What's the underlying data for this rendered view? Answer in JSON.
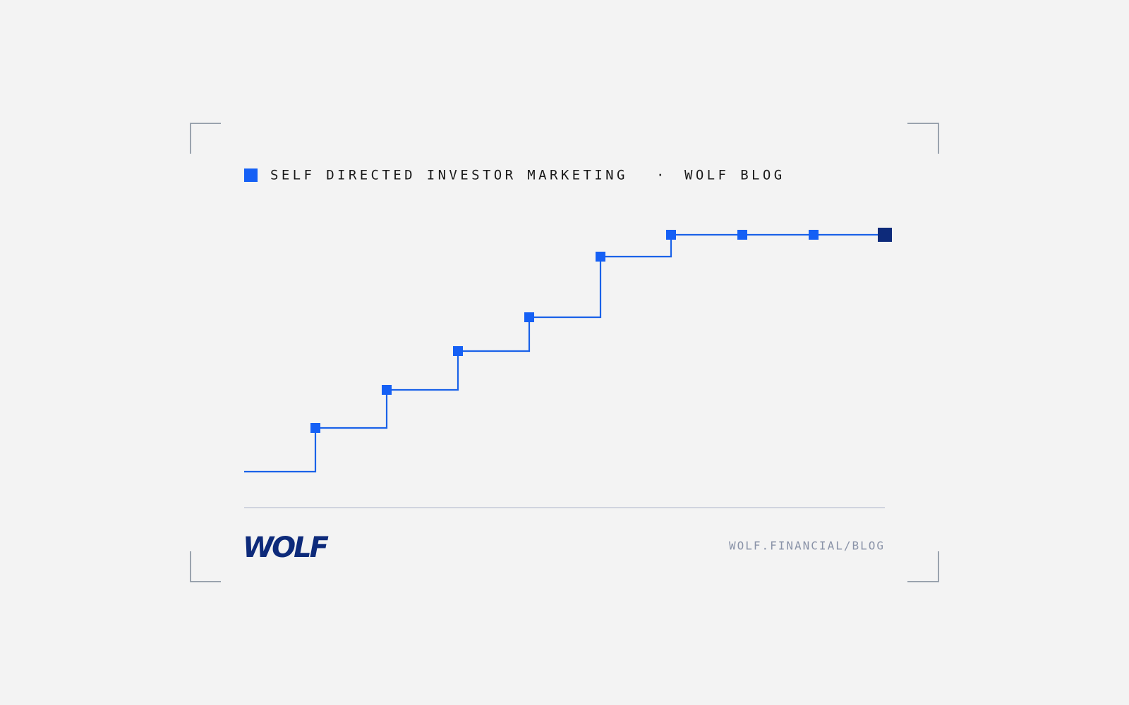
{
  "header": {
    "category": "SELF DIRECTED INVESTOR MARKETING",
    "separator": "·",
    "source": "WOLF BLOG"
  },
  "footer": {
    "logo": "WOLF",
    "url": "WOLF.FINANCIAL/BLOG"
  }
}
